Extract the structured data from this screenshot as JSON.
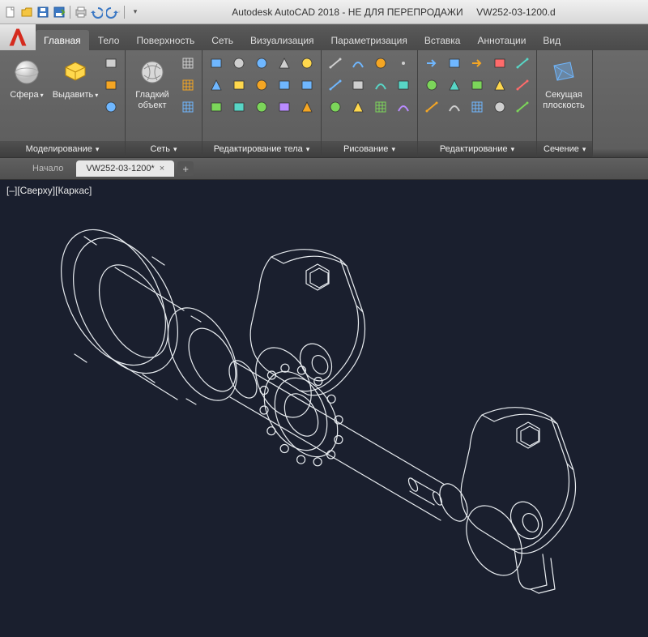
{
  "app": {
    "title_center": "Autodesk AutoCAD 2018 - НЕ ДЛЯ ПЕРЕПРОДАЖИ",
    "title_file": "VW252-03-1200.d"
  },
  "qat": {
    "items": [
      "new",
      "open",
      "save",
      "saveas",
      "plot",
      "undo",
      "redo"
    ]
  },
  "ribbon": {
    "tabs": [
      {
        "label": "Главная",
        "active": true
      },
      {
        "label": "Тело"
      },
      {
        "label": "Поверхность"
      },
      {
        "label": "Сеть"
      },
      {
        "label": "Визуализация"
      },
      {
        "label": "Параметризация"
      },
      {
        "label": "Вставка"
      },
      {
        "label": "Аннотации"
      },
      {
        "label": "Вид"
      }
    ],
    "panels": [
      {
        "title": "Моделирование",
        "big": [
          {
            "label": "Сфера",
            "icon": "sphere",
            "dd": true
          },
          {
            "label": "Выдавить",
            "icon": "extrude",
            "dd": true
          }
        ],
        "cols": [
          [
            "polysolid",
            "presspull",
            "revolve"
          ]
        ]
      },
      {
        "title": "Сеть",
        "big": [
          {
            "label": "Гладкий\nобъект",
            "icon": "smooth",
            "dd": false
          }
        ],
        "cols": [
          [
            "mesh1",
            "mesh2",
            "mesh3"
          ]
        ]
      },
      {
        "title": "Редактирование тела",
        "cols": [
          [
            "extrudef",
            "taperf",
            "color1"
          ],
          [
            "shell",
            "separate",
            "color2"
          ],
          [
            "union",
            "subtract",
            "intersect"
          ],
          [
            "slice",
            "thicken",
            "imprint"
          ],
          [
            "offset",
            "fillet3d",
            "chamfer3d"
          ]
        ]
      },
      {
        "title": "Рисование",
        "cols": [
          [
            "line",
            "pline",
            "circle"
          ],
          [
            "arc",
            "rect",
            "poly"
          ],
          [
            "ellipse",
            "spline",
            "hatch"
          ],
          [
            "point",
            "region",
            "helix"
          ]
        ]
      },
      {
        "title": "Редактирование",
        "cols": [
          [
            "move",
            "rotate",
            "trim"
          ],
          [
            "copy",
            "mirror",
            "fillet"
          ],
          [
            "stretch",
            "scale",
            "array"
          ],
          [
            "erase",
            "explode",
            "offset2"
          ],
          [
            "align",
            "break",
            "join"
          ]
        ]
      },
      {
        "title": "Сечение",
        "big": [
          {
            "label": "Секущая\nплоскость",
            "icon": "section",
            "dd": false
          }
        ]
      }
    ]
  },
  "docTabs": {
    "items": [
      {
        "label": "Начало",
        "active": false
      },
      {
        "label": "VW252-03-1200*",
        "active": true
      }
    ]
  },
  "viewport": {
    "label": "[–][Сверху][Каркас]",
    "bg": "#1a1f2e",
    "stroke": "#e8ecf0",
    "stroke_width": 1.2
  },
  "colors": {
    "ribbon_bg_top": "#6a6a6a",
    "ribbon_bg_bot": "#5e5e5e",
    "panel_title_bg": "#484848",
    "text_light": "#eeeeee",
    "accent_red": "#d52b1e",
    "qat_blue": "#3b78c4",
    "qat_green": "#5aa02c"
  }
}
